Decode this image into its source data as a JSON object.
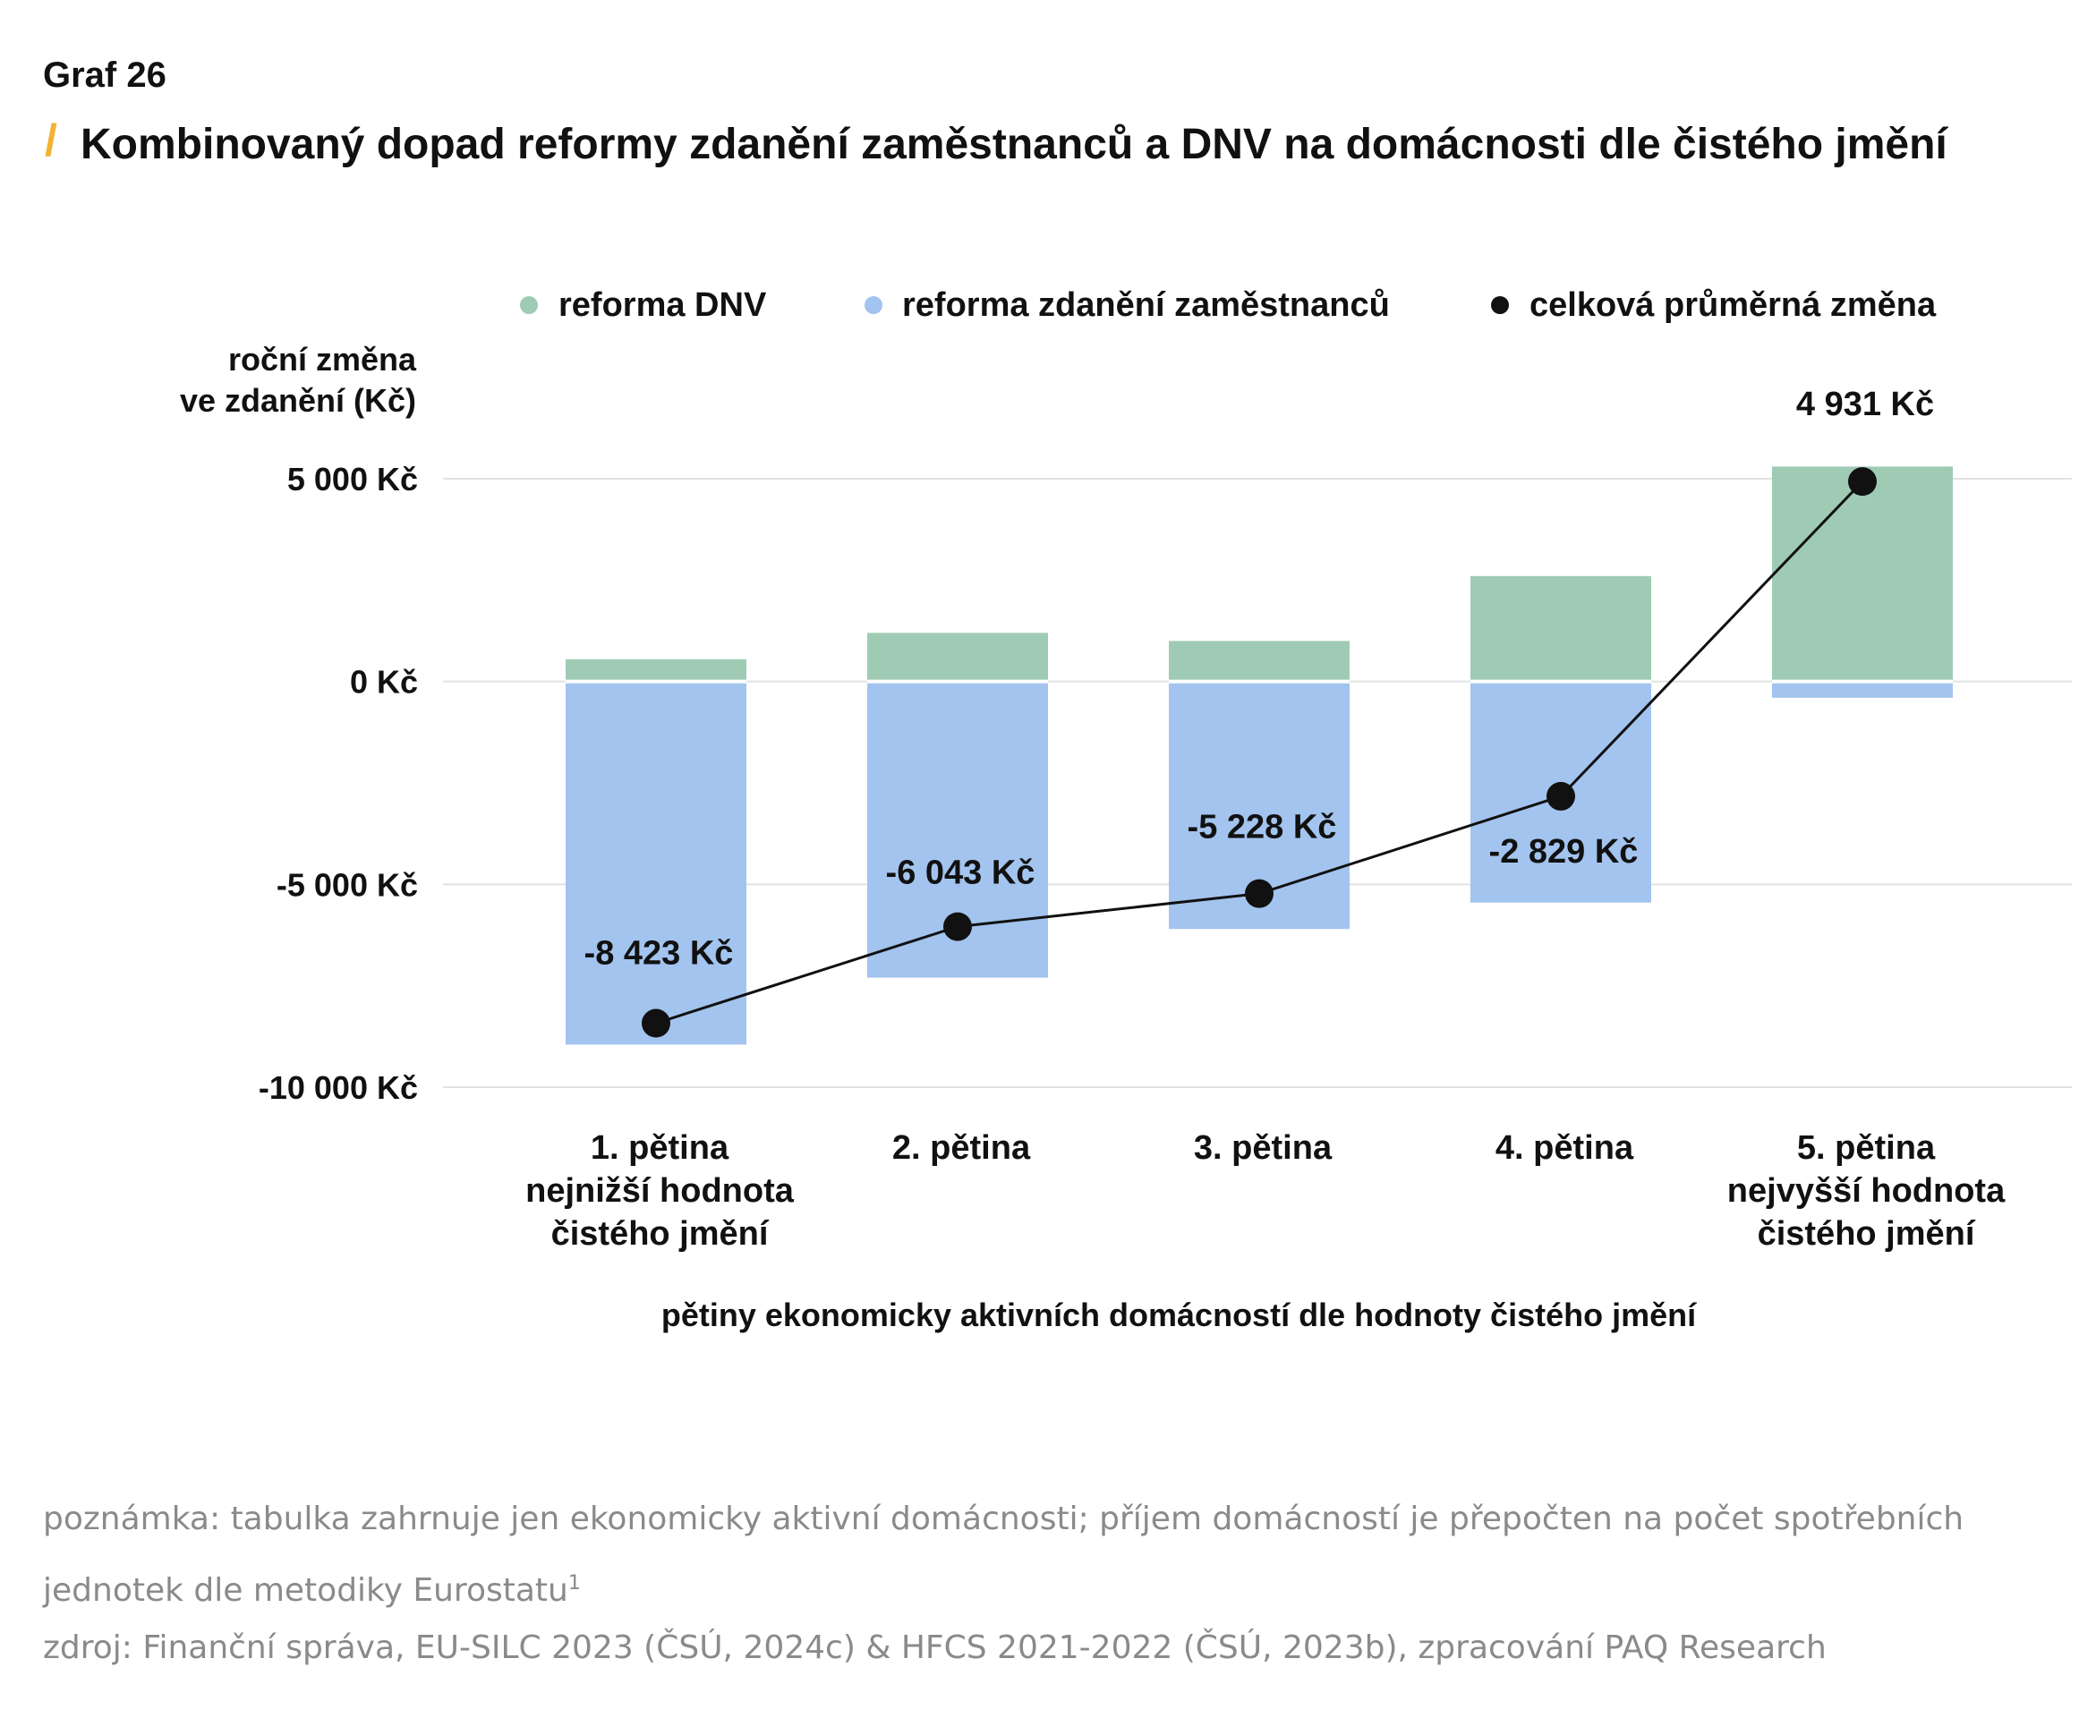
{
  "header": {
    "graf_label": "Graf 26",
    "title": "Kombinovaný dopad reformy zdanění zaměstnanců a DNV na domácnosti dle čistého jmění"
  },
  "chart_data": {
    "type": "bar",
    "stacked": true,
    "categories": [
      [
        "1. pětina",
        "nejnižší hodnota",
        "čistého jmění"
      ],
      [
        "2. pětina"
      ],
      [
        "3. pětina"
      ],
      [
        "4. pětina"
      ],
      [
        "5. pětina",
        "nejvyšší hodnota",
        "čistého jmění"
      ]
    ],
    "series": [
      {
        "name": "reforma DNV",
        "type": "bar",
        "color": "#9fcbb5",
        "values": [
          550,
          1200,
          1000,
          2600,
          5300
        ]
      },
      {
        "name": "reforma zdanění zaměstnanců",
        "type": "bar",
        "color": "#a3c4ee",
        "values": [
          -8950,
          -7300,
          -6100,
          -5450,
          -400
        ]
      },
      {
        "name": "celková průměrná změna",
        "type": "line",
        "color": "#111111",
        "values": [
          -8423,
          -6043,
          -5228,
          -2829,
          4931
        ]
      }
    ],
    "data_labels": [
      "-8 423 Kč",
      "-6 043 Kč",
      "-5 228 Kč",
      "-2 829 Kč",
      "4 931 Kč"
    ],
    "ylabel": [
      "roční změna",
      "ve zdanění (Kč)"
    ],
    "xlabel": "pětiny ekonomicky aktivních domácností dle hodnoty čistého jmění",
    "yticks": [
      5000,
      0,
      -5000,
      -10000
    ],
    "ytick_labels": [
      "5 000 Kč",
      "0 Kč",
      "-5 000 Kč",
      "-10 000 Kč"
    ],
    "ylim": [
      -10000,
      5000
    ],
    "grid": true,
    "legend_position": "top"
  },
  "footer": {
    "note": "poznámka: tabulka zahrnuje jen ekonomicky aktivní domácnosti; příjem domácností je přepočten na počet spotřebních jednotek dle metodiky Eurostatu",
    "note_sup": "1",
    "source": "zdroj: Finanční správa, EU-SILC 2023 (ČSÚ, 2024c) & HFCS 2021-2022 (ČSÚ, 2023b), zpracování PAQ Research"
  }
}
